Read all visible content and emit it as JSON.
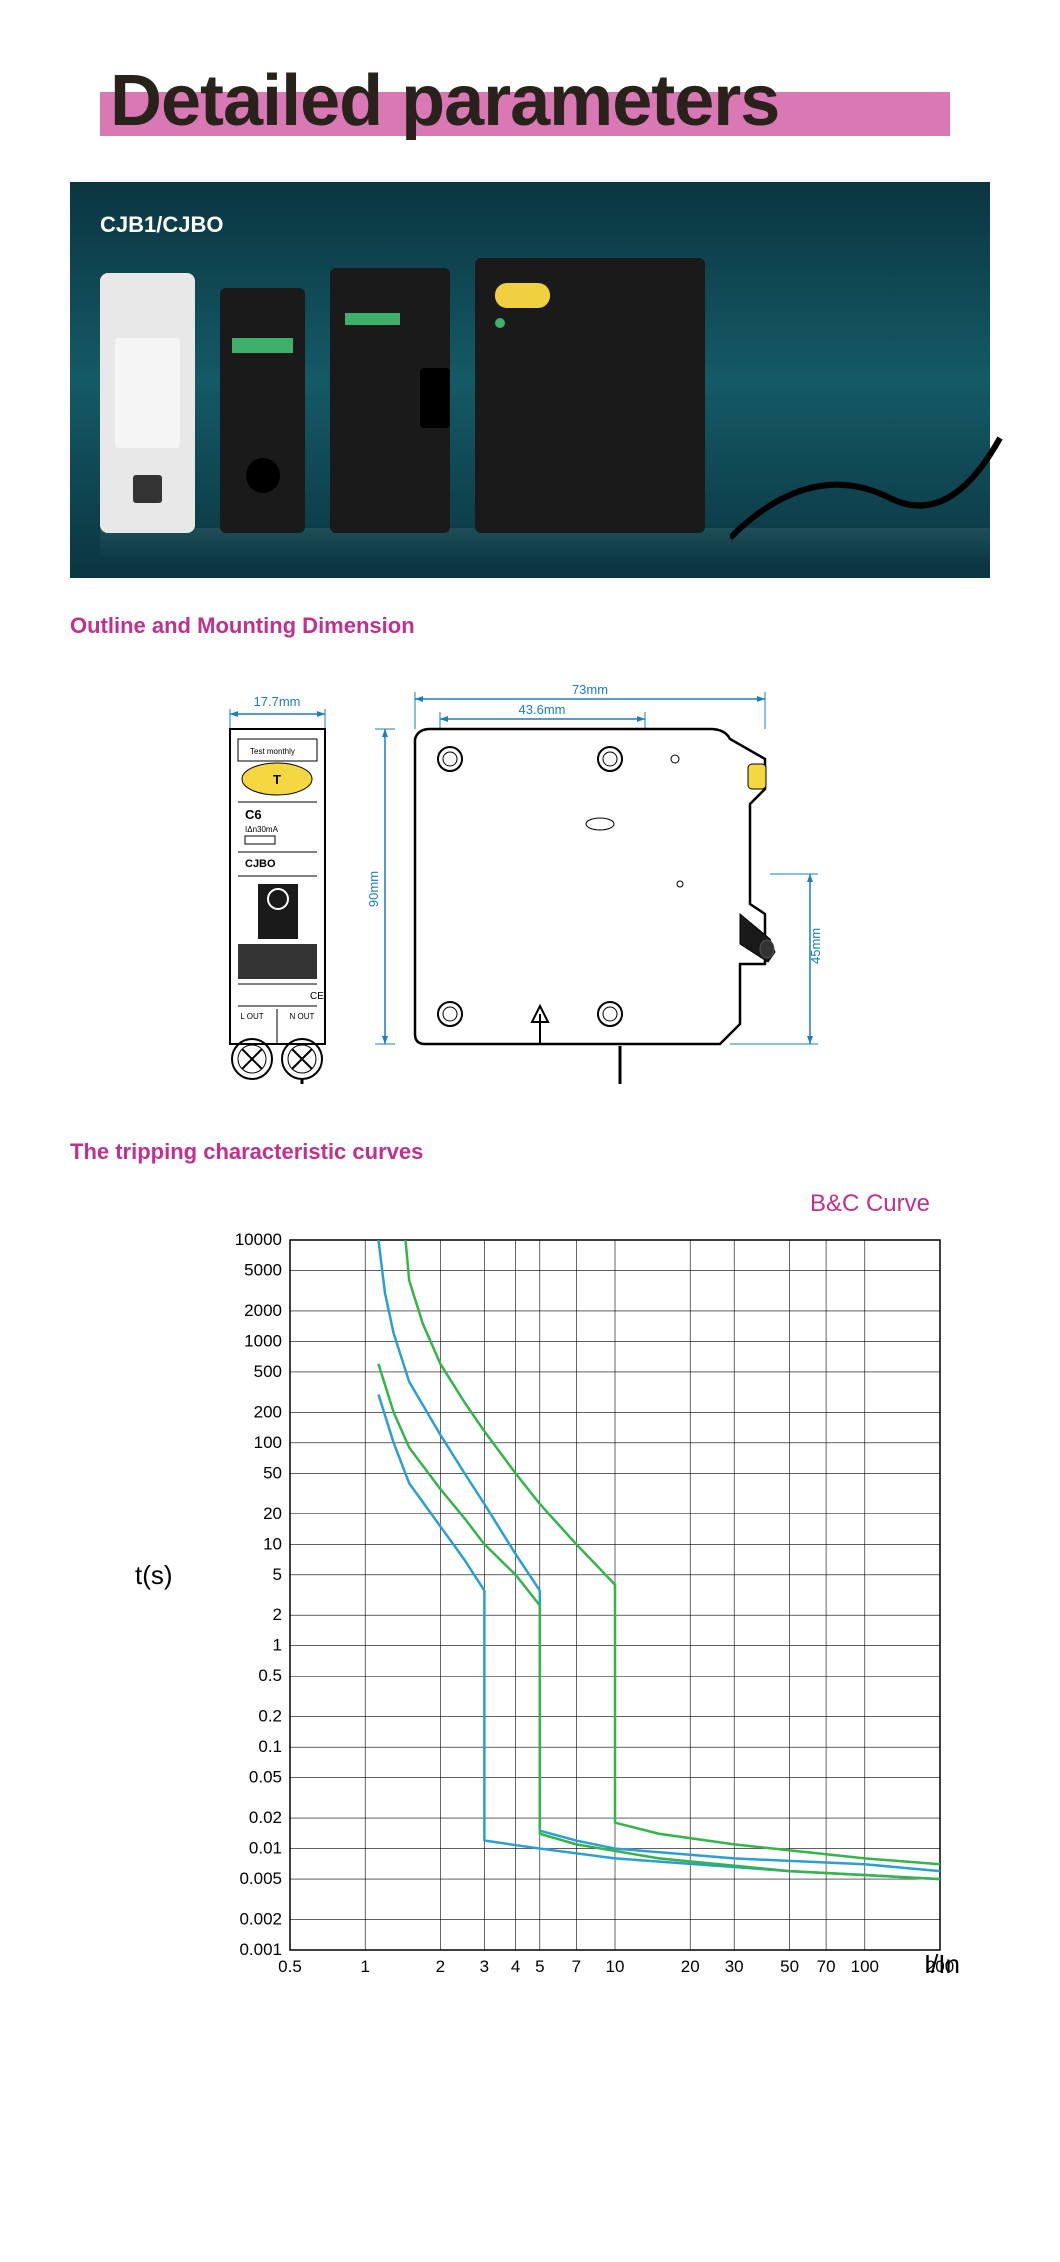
{
  "title": "Detailed parameters",
  "hero_label": "CJB1/CJBO",
  "section_outline": "Outline and Mounting Dimension",
  "section_curves": "The tripping characteristic curves",
  "curve_label": "B&C Curve",
  "y_axis_label": "t(s)",
  "x_axis_label": "I/In",
  "colors": {
    "title_highlight": "#d978b5",
    "title_text": "#28221b",
    "section": "#c03090",
    "hero_bg_top": "#0a3540",
    "hero_bg_mid": "#145a66",
    "dim_line": "#1a7fbf",
    "curve_blue": "#2a9fd6",
    "curve_green": "#35b44a",
    "grid": "#000000"
  },
  "dimensions": {
    "width_front": "17.7mm",
    "width_side_outer": "73mm",
    "width_side_inner": "43.6mm",
    "height": "90mm",
    "height_half": "45mm",
    "front_labels": {
      "test": "Test monthly",
      "c6": "C6",
      "ian": "IΔn30mA",
      "model": "CJBO",
      "l_out": "L OUT",
      "n_out": "N OUT"
    }
  },
  "chart": {
    "type": "line",
    "x_scale": "log",
    "y_scale": "log",
    "xlim": [
      0.5,
      200
    ],
    "ylim": [
      0.001,
      10000
    ],
    "x_ticks": [
      "0.5",
      "1",
      "2",
      "3",
      "4",
      "5",
      "7",
      "10",
      "20",
      "30",
      "50",
      "70",
      "100",
      "200"
    ],
    "y_ticks": [
      "10000",
      "5000",
      "2000",
      "1000",
      "500",
      "200",
      "100",
      "50",
      "20",
      "10",
      "5",
      "2",
      "1",
      "0.5",
      "0.2",
      "0.1",
      "0.05",
      "0.02",
      "0.01",
      "0.005",
      "0.002",
      "0.001"
    ],
    "curves": [
      {
        "name": "blue_upper",
        "color": "#2a9fd6",
        "width": 2.5,
        "points": [
          [
            1.13,
            10000
          ],
          [
            1.2,
            3000
          ],
          [
            1.3,
            1200
          ],
          [
            1.5,
            400
          ],
          [
            2,
            120
          ],
          [
            2.5,
            50
          ],
          [
            3,
            25
          ],
          [
            4,
            8
          ],
          [
            5,
            3.5
          ],
          [
            5,
            0.015
          ],
          [
            7,
            0.012
          ],
          [
            10,
            0.01
          ],
          [
            30,
            0.008
          ],
          [
            100,
            0.007
          ],
          [
            200,
            0.006
          ]
        ]
      },
      {
        "name": "blue_lower",
        "color": "#2a9fd6",
        "width": 2.5,
        "points": [
          [
            1.13,
            300
          ],
          [
            1.3,
            100
          ],
          [
            1.5,
            40
          ],
          [
            2,
            15
          ],
          [
            2.5,
            7
          ],
          [
            3,
            3.5
          ],
          [
            3,
            0.012
          ],
          [
            5,
            0.01
          ],
          [
            10,
            0.008
          ],
          [
            50,
            0.006
          ],
          [
            200,
            0.005
          ]
        ]
      },
      {
        "name": "green_upper",
        "color": "#35b44a",
        "width": 2.5,
        "points": [
          [
            1.45,
            10000
          ],
          [
            1.5,
            4000
          ],
          [
            1.7,
            1500
          ],
          [
            2,
            600
          ],
          [
            2.5,
            250
          ],
          [
            3,
            130
          ],
          [
            4,
            50
          ],
          [
            5,
            25
          ],
          [
            7,
            10
          ],
          [
            10,
            4
          ],
          [
            10,
            0.018
          ],
          [
            15,
            0.014
          ],
          [
            30,
            0.011
          ],
          [
            100,
            0.008
          ],
          [
            200,
            0.007
          ]
        ]
      },
      {
        "name": "green_lower",
        "color": "#35b44a",
        "width": 2.5,
        "points": [
          [
            1.13,
            600
          ],
          [
            1.3,
            200
          ],
          [
            1.5,
            90
          ],
          [
            2,
            35
          ],
          [
            2.5,
            18
          ],
          [
            3,
            10
          ],
          [
            4,
            5
          ],
          [
            5,
            2.5
          ],
          [
            5,
            0.014
          ],
          [
            7,
            0.011
          ],
          [
            15,
            0.008
          ],
          [
            50,
            0.006
          ],
          [
            200,
            0.005
          ]
        ]
      }
    ]
  }
}
